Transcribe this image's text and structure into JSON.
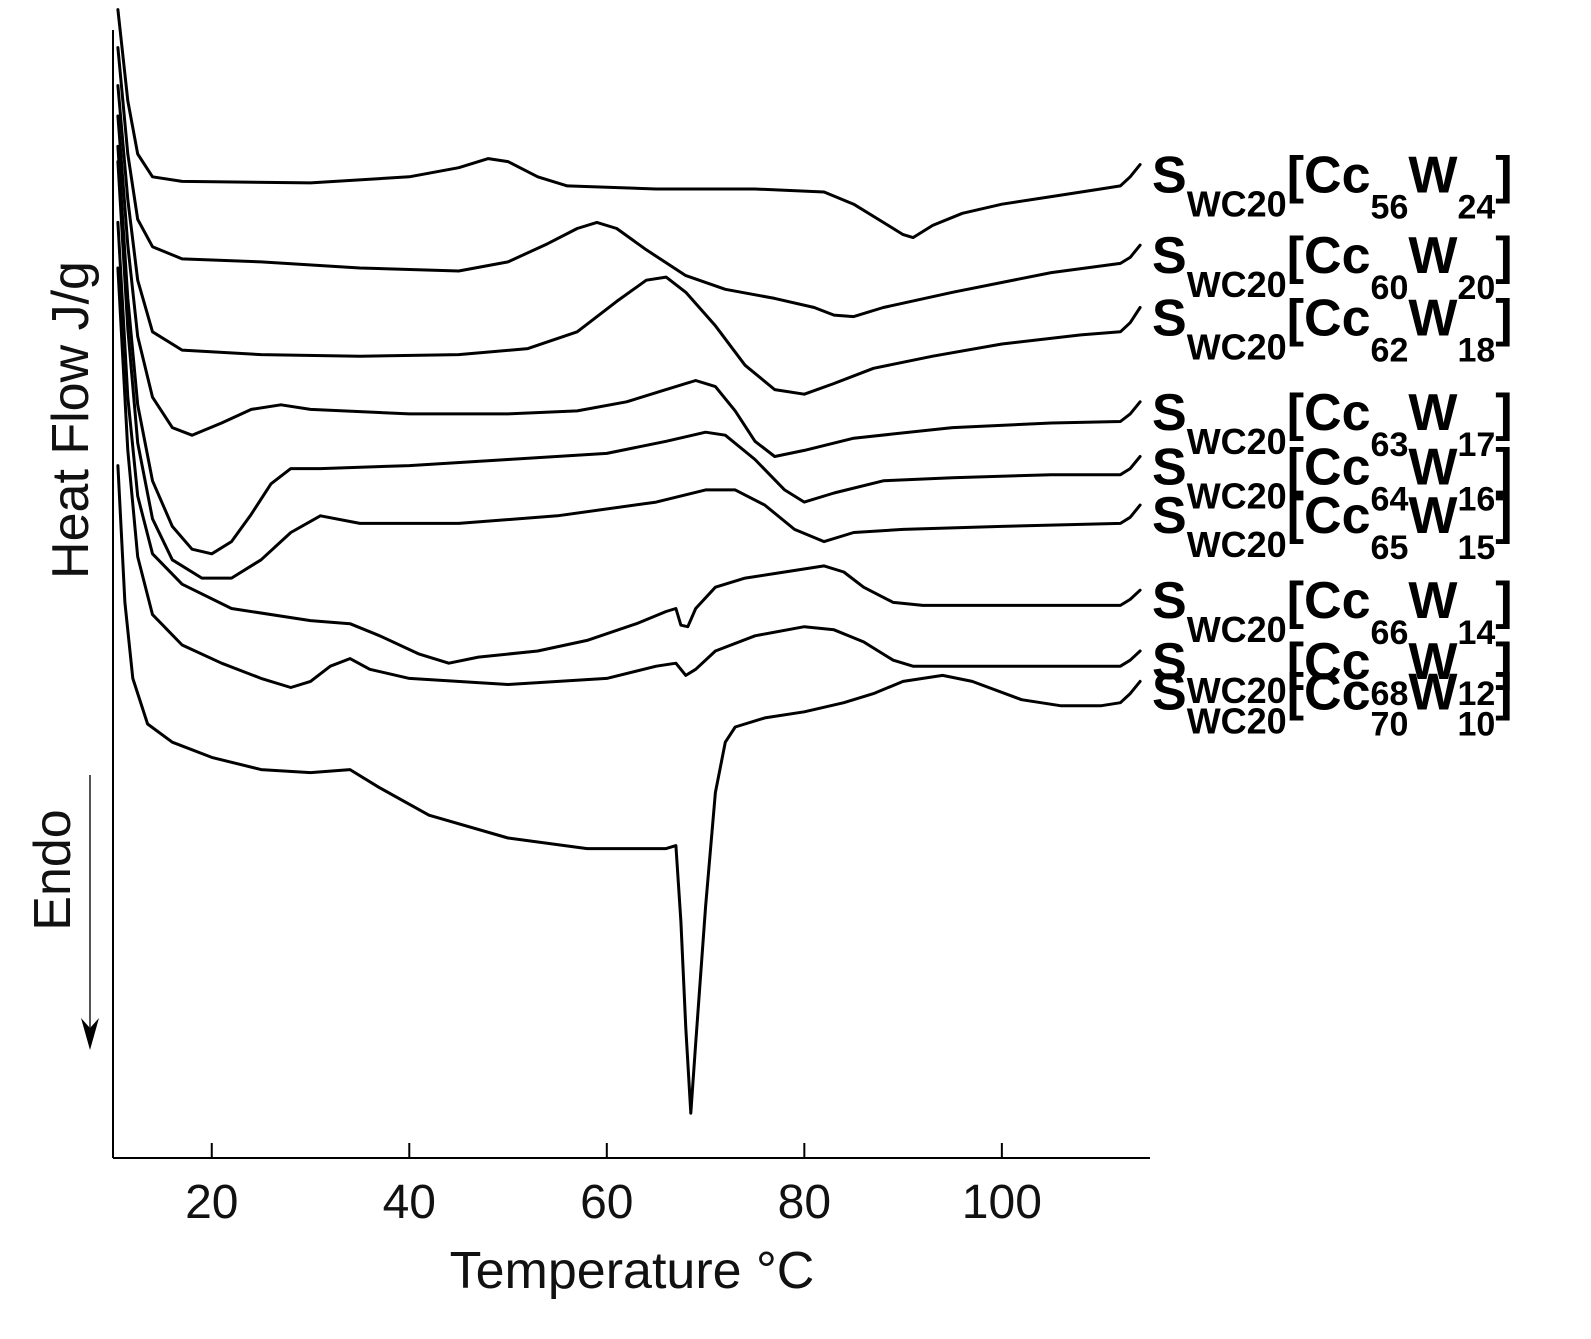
{
  "chart_data": {
    "type": "line",
    "xlabel": "Temperature °C",
    "ylabel": "Heat Flow J/g",
    "annotation": "Endo",
    "xlim": [
      10,
      115
    ],
    "x_ticks": [
      20,
      40,
      60,
      80,
      100
    ],
    "y_axis_numbered": false,
    "grid": false,
    "legend": "series labels at right end of curves",
    "series": [
      {
        "label": {
          "base": "S",
          "sub1": "WC20",
          "bracket_open": "[",
          "mid": "Cc",
          "sub2": "56",
          "end": "W",
          "sub3": "24",
          "bracket_close": "]"
        },
        "points": [
          [
            10.5,
            0.2
          ],
          [
            11.5,
            -0.4
          ],
          [
            12.5,
            -0.75
          ],
          [
            14,
            -0.9
          ],
          [
            17,
            -0.93
          ],
          [
            30,
            -0.94
          ],
          [
            40,
            -0.9
          ],
          [
            45,
            -0.84
          ],
          [
            48,
            -0.78
          ],
          [
            50,
            -0.8
          ],
          [
            53,
            -0.9
          ],
          [
            56,
            -0.96
          ],
          [
            65,
            -0.98
          ],
          [
            75,
            -0.98
          ],
          [
            82,
            -1.0
          ],
          [
            85,
            -1.08
          ],
          [
            88,
            -1.2
          ],
          [
            90,
            -1.28
          ],
          [
            91,
            -1.3
          ],
          [
            93,
            -1.22
          ],
          [
            96,
            -1.14
          ],
          [
            100,
            -1.08
          ],
          [
            105,
            -1.03
          ],
          [
            110,
            -0.98
          ],
          [
            112,
            -0.96
          ],
          [
            113,
            -0.9
          ],
          [
            114,
            -0.82
          ]
        ]
      },
      {
        "label": {
          "base": "S",
          "sub1": "WC20",
          "bracket_open": "[",
          "mid": "Cc",
          "sub2": "60",
          "end": "W",
          "sub3": "20",
          "bracket_close": "]"
        },
        "points": [
          [
            10.5,
            -0.05
          ],
          [
            11.5,
            -0.75
          ],
          [
            12.5,
            -1.18
          ],
          [
            14,
            -1.36
          ],
          [
            17,
            -1.44
          ],
          [
            25,
            -1.46
          ],
          [
            35,
            -1.5
          ],
          [
            45,
            -1.52
          ],
          [
            50,
            -1.46
          ],
          [
            54,
            -1.34
          ],
          [
            57,
            -1.24
          ],
          [
            59,
            -1.2
          ],
          [
            61,
            -1.24
          ],
          [
            64,
            -1.38
          ],
          [
            68,
            -1.55
          ],
          [
            72,
            -1.64
          ],
          [
            77,
            -1.7
          ],
          [
            81,
            -1.76
          ],
          [
            83,
            -1.81
          ],
          [
            85,
            -1.82
          ],
          [
            88,
            -1.76
          ],
          [
            95,
            -1.66
          ],
          [
            105,
            -1.53
          ],
          [
            112,
            -1.47
          ],
          [
            113,
            -1.43
          ],
          [
            114,
            -1.35
          ]
        ]
      },
      {
        "label": {
          "base": "S",
          "sub1": "WC20",
          "bracket_open": "[",
          "mid": "Cc",
          "sub2": "62",
          "end": "W",
          "sub3": "18",
          "bracket_close": "]"
        },
        "points": [
          [
            10.5,
            -0.3
          ],
          [
            11.5,
            -1.05
          ],
          [
            12.5,
            -1.58
          ],
          [
            14,
            -1.92
          ],
          [
            17,
            -2.04
          ],
          [
            25,
            -2.07
          ],
          [
            35,
            -2.08
          ],
          [
            45,
            -2.07
          ],
          [
            52,
            -2.03
          ],
          [
            57,
            -1.92
          ],
          [
            61,
            -1.72
          ],
          [
            64,
            -1.58
          ],
          [
            66,
            -1.56
          ],
          [
            68,
            -1.66
          ],
          [
            71,
            -1.88
          ],
          [
            74,
            -2.14
          ],
          [
            77,
            -2.3
          ],
          [
            80,
            -2.33
          ],
          [
            83,
            -2.26
          ],
          [
            87,
            -2.16
          ],
          [
            93,
            -2.08
          ],
          [
            100,
            -2.0
          ],
          [
            108,
            -1.94
          ],
          [
            112,
            -1.92
          ],
          [
            113,
            -1.86
          ],
          [
            114,
            -1.76
          ]
        ]
      },
      {
        "label": {
          "base": "S",
          "sub1": "WC20",
          "bracket_open": "[",
          "mid": "Cc",
          "sub2": "63",
          "end": "W",
          "sub3": "17",
          "bracket_close": "]"
        },
        "points": [
          [
            10.5,
            -0.5
          ],
          [
            11.5,
            -1.35
          ],
          [
            12.5,
            -1.95
          ],
          [
            14,
            -2.35
          ],
          [
            16,
            -2.55
          ],
          [
            18,
            -2.6
          ],
          [
            21,
            -2.52
          ],
          [
            24,
            -2.43
          ],
          [
            27,
            -2.4
          ],
          [
            30,
            -2.43
          ],
          [
            40,
            -2.46
          ],
          [
            50,
            -2.46
          ],
          [
            57,
            -2.44
          ],
          [
            62,
            -2.38
          ],
          [
            66,
            -2.3
          ],
          [
            69,
            -2.24
          ],
          [
            71,
            -2.28
          ],
          [
            73,
            -2.44
          ],
          [
            75,
            -2.64
          ],
          [
            77,
            -2.74
          ],
          [
            80,
            -2.7
          ],
          [
            85,
            -2.62
          ],
          [
            95,
            -2.55
          ],
          [
            105,
            -2.52
          ],
          [
            112,
            -2.51
          ],
          [
            113,
            -2.46
          ],
          [
            114,
            -2.38
          ]
        ]
      },
      {
        "label": {
          "base": "S",
          "sub1": "WC20",
          "bracket_open": "[",
          "mid": "Cc",
          "sub2": "64",
          "end": "W",
          "sub3": "16",
          "bracket_close": "]"
        },
        "points": [
          [
            10.5,
            -0.7
          ],
          [
            11.5,
            -1.7
          ],
          [
            12.5,
            -2.4
          ],
          [
            14,
            -2.9
          ],
          [
            16,
            -3.2
          ],
          [
            18,
            -3.35
          ],
          [
            20,
            -3.38
          ],
          [
            22,
            -3.3
          ],
          [
            24,
            -3.12
          ],
          [
            26,
            -2.92
          ],
          [
            28,
            -2.82
          ],
          [
            31,
            -2.82
          ],
          [
            40,
            -2.8
          ],
          [
            50,
            -2.76
          ],
          [
            60,
            -2.72
          ],
          [
            66,
            -2.64
          ],
          [
            70,
            -2.58
          ],
          [
            72,
            -2.6
          ],
          [
            75,
            -2.76
          ],
          [
            78,
            -2.96
          ],
          [
            80,
            -3.04
          ],
          [
            83,
            -2.98
          ],
          [
            88,
            -2.9
          ],
          [
            95,
            -2.88
          ],
          [
            105,
            -2.86
          ],
          [
            112,
            -2.86
          ],
          [
            113,
            -2.82
          ],
          [
            114,
            -2.74
          ]
        ]
      },
      {
        "label": {
          "base": "S",
          "sub1": "WC20",
          "bracket_open": "[",
          "mid": "Cc",
          "sub2": "65",
          "end": "W",
          "sub3": "15",
          "bracket_close": "]"
        },
        "points": [
          [
            10.5,
            -0.8
          ],
          [
            11.5,
            -1.9
          ],
          [
            12.5,
            -2.65
          ],
          [
            14,
            -3.15
          ],
          [
            16,
            -3.42
          ],
          [
            19,
            -3.54
          ],
          [
            22,
            -3.54
          ],
          [
            25,
            -3.42
          ],
          [
            28,
            -3.24
          ],
          [
            31,
            -3.13
          ],
          [
            35,
            -3.18
          ],
          [
            45,
            -3.18
          ],
          [
            55,
            -3.13
          ],
          [
            65,
            -3.04
          ],
          [
            70,
            -2.96
          ],
          [
            73,
            -2.96
          ],
          [
            76,
            -3.06
          ],
          [
            79,
            -3.22
          ],
          [
            82,
            -3.3
          ],
          [
            85,
            -3.24
          ],
          [
            90,
            -3.22
          ],
          [
            100,
            -3.2
          ],
          [
            112,
            -3.18
          ],
          [
            113,
            -3.14
          ],
          [
            114,
            -3.06
          ]
        ]
      },
      {
        "label": {
          "base": "S",
          "sub1": "WC20",
          "bracket_open": "[",
          "mid": "Cc",
          "sub2": "66",
          "end": "W",
          "sub3": "14",
          "bracket_close": "]"
        },
        "points": [
          [
            10.5,
            -1.2
          ],
          [
            11.5,
            -2.35
          ],
          [
            12.5,
            -3.0
          ],
          [
            14,
            -3.38
          ],
          [
            17,
            -3.58
          ],
          [
            22,
            -3.74
          ],
          [
            30,
            -3.82
          ],
          [
            34,
            -3.84
          ],
          [
            37,
            -3.92
          ],
          [
            41,
            -4.04
          ],
          [
            44,
            -4.1
          ],
          [
            47,
            -4.06
          ],
          [
            53,
            -4.02
          ],
          [
            58,
            -3.95
          ],
          [
            63,
            -3.84
          ],
          [
            66,
            -3.76
          ],
          [
            67,
            -3.74
          ],
          [
            67.5,
            -3.85
          ],
          [
            68.2,
            -3.86
          ],
          [
            69,
            -3.74
          ],
          [
            71,
            -3.6
          ],
          [
            74,
            -3.54
          ],
          [
            78,
            -3.5
          ],
          [
            82,
            -3.46
          ],
          [
            84,
            -3.5
          ],
          [
            86,
            -3.6
          ],
          [
            89,
            -3.7
          ],
          [
            92,
            -3.72
          ],
          [
            112,
            -3.72
          ],
          [
            113,
            -3.68
          ],
          [
            114,
            -3.62
          ]
        ]
      },
      {
        "label": {
          "base": "S",
          "sub1": "WC20",
          "bracket_open": "[",
          "mid": "Cc",
          "sub2": "68",
          "end": "W",
          "sub3": "12",
          "bracket_close": "]"
        },
        "points": [
          [
            10.5,
            -1.5
          ],
          [
            11.5,
            -2.7
          ],
          [
            12.5,
            -3.4
          ],
          [
            14,
            -3.78
          ],
          [
            17,
            -3.98
          ],
          [
            21,
            -4.1
          ],
          [
            25,
            -4.2
          ],
          [
            28,
            -4.26
          ],
          [
            30,
            -4.22
          ],
          [
            32,
            -4.12
          ],
          [
            34,
            -4.07
          ],
          [
            36,
            -4.14
          ],
          [
            40,
            -4.2
          ],
          [
            50,
            -4.24
          ],
          [
            60,
            -4.2
          ],
          [
            65,
            -4.12
          ],
          [
            67,
            -4.1
          ],
          [
            68,
            -4.18
          ],
          [
            69,
            -4.14
          ],
          [
            71,
            -4.02
          ],
          [
            75,
            -3.92
          ],
          [
            80,
            -3.86
          ],
          [
            83,
            -3.88
          ],
          [
            86,
            -3.96
          ],
          [
            89,
            -4.08
          ],
          [
            91,
            -4.12
          ],
          [
            100,
            -4.12
          ],
          [
            112,
            -4.12
          ],
          [
            113,
            -4.08
          ],
          [
            114,
            -4.02
          ]
        ]
      },
      {
        "label": {
          "base": "S",
          "sub1": "WC20",
          "bracket_open": "[",
          "mid": "Cc",
          "sub2": "70",
          "end": "W",
          "sub3": "10",
          "bracket_close": "]"
        },
        "points": [
          [
            10.5,
            -2.8
          ],
          [
            11.2,
            -3.7
          ],
          [
            12,
            -4.2
          ],
          [
            13.5,
            -4.5
          ],
          [
            16,
            -4.62
          ],
          [
            20,
            -4.72
          ],
          [
            25,
            -4.8
          ],
          [
            30,
            -4.82
          ],
          [
            34,
            -4.8
          ],
          [
            37,
            -4.92
          ],
          [
            42,
            -5.1
          ],
          [
            50,
            -5.25
          ],
          [
            58,
            -5.32
          ],
          [
            66,
            -5.32
          ],
          [
            67,
            -5.3
          ],
          [
            67.5,
            -5.8
          ],
          [
            68,
            -6.5
          ],
          [
            68.5,
            -7.06
          ],
          [
            69,
            -6.6
          ],
          [
            70,
            -5.7
          ],
          [
            71,
            -4.95
          ],
          [
            72,
            -4.62
          ],
          [
            73,
            -4.52
          ],
          [
            76,
            -4.46
          ],
          [
            80,
            -4.42
          ],
          [
            84,
            -4.36
          ],
          [
            87,
            -4.3
          ],
          [
            90,
            -4.22
          ],
          [
            94,
            -4.18
          ],
          [
            97,
            -4.22
          ],
          [
            102,
            -4.34
          ],
          [
            106,
            -4.38
          ],
          [
            110,
            -4.38
          ],
          [
            112,
            -4.36
          ],
          [
            113,
            -4.3
          ],
          [
            114,
            -4.22
          ]
        ]
      }
    ]
  }
}
